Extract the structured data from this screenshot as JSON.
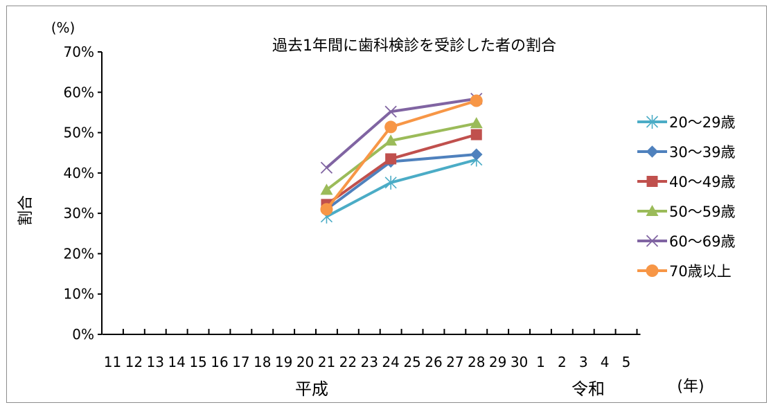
{
  "chart_data": {
    "type": "line",
    "title": "過去1年間に歯科検診を受診した者の割合",
    "ylabel": "割合",
    "y_unit": "(%)",
    "x_unit": "(年)",
    "ylim": [
      0,
      70
    ],
    "yticks": [
      "0%",
      "10%",
      "20%",
      "30%",
      "40%",
      "50%",
      "60%",
      "70%"
    ],
    "x_tick_labels": [
      "11",
      "12",
      "13",
      "14",
      "15",
      "16",
      "17",
      "18",
      "19",
      "20",
      "21",
      "22",
      "23",
      "24",
      "25",
      "26",
      "27",
      "28",
      "29",
      "30",
      "1",
      "2",
      "3",
      "4",
      "5"
    ],
    "era_labels": [
      "平成",
      "令和"
    ],
    "x_category_indices": [
      10,
      13,
      17
    ],
    "x_categories": [
      "平成21",
      "平成24",
      "平成28"
    ],
    "legend_position": "right",
    "series": [
      {
        "name": "20～29歳",
        "marker": "asterisk",
        "color": "#4BACC6",
        "values": [
          29.2,
          37.6,
          43.3
        ]
      },
      {
        "name": "30～39歳",
        "marker": "diamond",
        "color": "#4F81BD",
        "values": [
          31.0,
          42.8,
          44.6
        ]
      },
      {
        "name": "40～49歳",
        "marker": "square",
        "color": "#C0504D",
        "values": [
          32.2,
          43.5,
          49.5
        ]
      },
      {
        "name": "50～59歳",
        "marker": "triangle",
        "color": "#9BBB59",
        "values": [
          35.8,
          48.0,
          52.3
        ]
      },
      {
        "name": "60～69歳",
        "marker": "x",
        "color": "#8064A2",
        "values": [
          41.3,
          55.2,
          58.4
        ]
      },
      {
        "name": "70歳以上",
        "marker": "circle",
        "color": "#F79646",
        "values": [
          31.0,
          51.4,
          57.9
        ]
      }
    ]
  }
}
